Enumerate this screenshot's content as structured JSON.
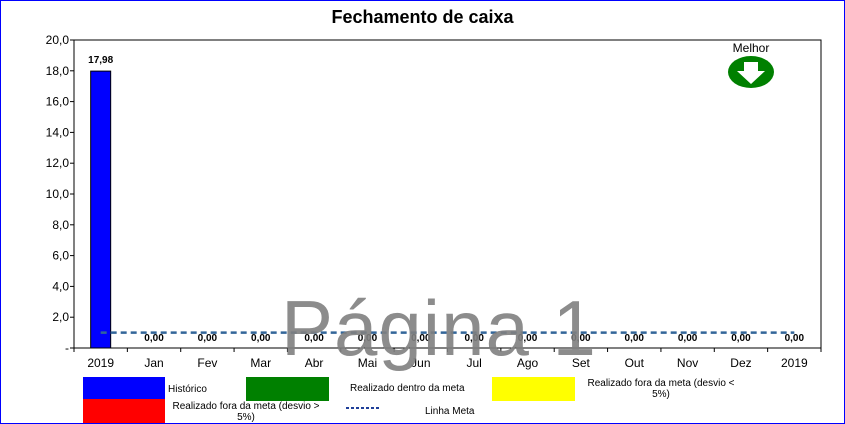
{
  "chart_data": {
    "type": "bar",
    "title": "Fechamento de caixa",
    "categories": [
      "2019",
      "Jan",
      "Fev",
      "Mar",
      "Abr",
      "Mai",
      "Jun",
      "Jul",
      "Ago",
      "Set",
      "Out",
      "Nov",
      "Dez",
      "2019"
    ],
    "values": [
      17.98,
      0,
      0,
      0,
      0,
      0,
      0,
      0,
      0,
      0,
      0,
      0,
      0,
      0
    ],
    "value_labels": [
      "17,98",
      "0,00",
      "0,00",
      "0,00",
      "0,00",
      "0,00",
      "0,00",
      "0,00",
      "0,00",
      "0,00",
      "0,00",
      "0,00",
      "0,00",
      "0,00"
    ],
    "bar_colors": [
      "#0000ff",
      "#0000ff",
      "#0000ff",
      "#0000ff",
      "#0000ff",
      "#0000ff",
      "#0000ff",
      "#0000ff",
      "#0000ff",
      "#0000ff",
      "#0000ff",
      "#0000ff",
      "#0000ff",
      "#0000ff"
    ],
    "ylim": [
      0,
      20
    ],
    "yticks": [
      0,
      2,
      4,
      6,
      8,
      10,
      12,
      14,
      16,
      18,
      20
    ],
    "ytick_labels": [
      "-",
      "2,0",
      "4,0",
      "6,0",
      "8,0",
      "10,0",
      "12,0",
      "14,0",
      "16,0",
      "18,0",
      "20,0"
    ],
    "meta_line": {
      "value": 1.0,
      "color": "#336699",
      "style": "dashed"
    },
    "grid": false,
    "legend_position": "bottom",
    "xlabel": "",
    "ylabel": ""
  },
  "indicator": {
    "label": "Melhor",
    "direction": "down",
    "color": "#008000"
  },
  "watermark": "Página 1",
  "legend": {
    "historico": {
      "label": "Histórico",
      "color": "#0000ff"
    },
    "dentro": {
      "label": "Realizado dentro da meta",
      "color": "#008000"
    },
    "fora_menor": {
      "label": "Realizado fora da meta (desvio < 5%)",
      "color": "#ffff00"
    },
    "fora_maior": {
      "label": "Realizado fora da meta (desvio > 5%)",
      "color": "#ff0000"
    },
    "meta": {
      "label": "Linha Meta",
      "color": "#1f3f99"
    }
  }
}
